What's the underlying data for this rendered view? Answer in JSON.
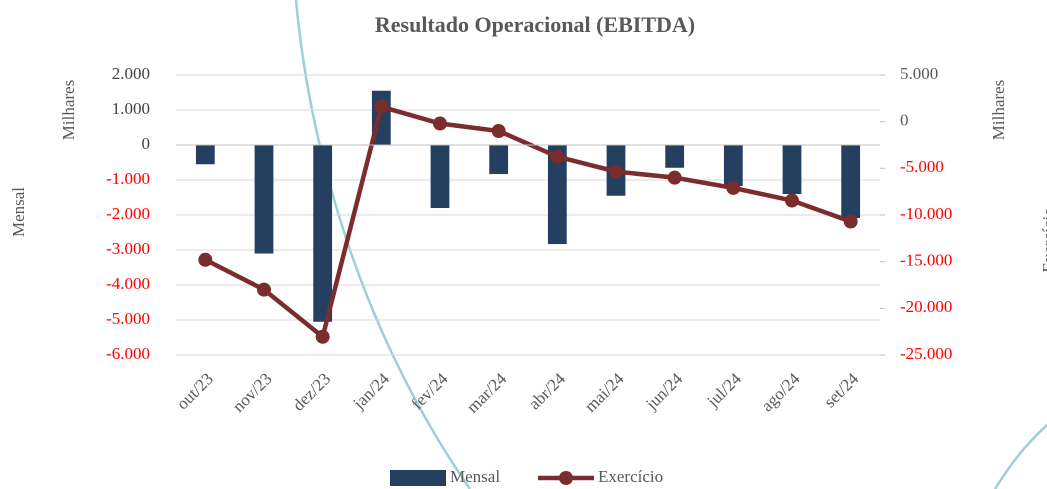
{
  "chart_data": {
    "type": "bar_line",
    "title": "Resultado Operacional (EBITDA)",
    "y_label": "Mensal",
    "y_unit": "Milhares",
    "y2_label": "Exercício",
    "y2_unit": "Milhares",
    "categories": [
      "out/23",
      "nov/23",
      "dez/23",
      "jan/24",
      "fev/24",
      "mar/24",
      "abr/24",
      "mai/24",
      "jun/24",
      "jul/24",
      "ago/24",
      "set/24"
    ],
    "series": [
      {
        "name": "Mensal",
        "type": "bar",
        "color": "#243f60",
        "values": [
          -550,
          -3100,
          -5050,
          1550,
          -1800,
          -830,
          -2830,
          -1450,
          -650,
          -1170,
          -1400,
          -2090
        ]
      },
      {
        "name": "Exercício",
        "type": "line",
        "axis": "y2",
        "color": "#7b2c2c",
        "values": [
          -14800,
          -18000,
          -23050,
          1600,
          -200,
          -1000,
          -3750,
          -5350,
          -6000,
          -7100,
          -8450,
          -10700
        ]
      }
    ],
    "ylim": [
      -6000,
      2000
    ],
    "yticks": [
      {
        "value": 2000,
        "label": "2.000"
      },
      {
        "value": 1000,
        "label": "1.000"
      },
      0,
      {
        "value": -1000,
        "label": "-1.000"
      },
      {
        "value": -2000,
        "label": "-2.000"
      },
      {
        "value": -3000,
        "label": "-3.000"
      },
      {
        "value": -4000,
        "label": "-4.000"
      },
      {
        "value": -5000,
        "label": "-5.000"
      },
      {
        "value": -6000,
        "label": "-6.000"
      }
    ],
    "y2lim": [
      -25000,
      5000
    ],
    "y2ticks": [
      {
        "value": 5000,
        "label": "5.000"
      },
      0,
      {
        "value": -5000,
        "label": "-5.000"
      },
      {
        "value": -10000,
        "label": "-10.000"
      },
      {
        "value": -15000,
        "label": "-15.000"
      },
      {
        "value": -20000,
        "label": "-20.000"
      },
      {
        "value": -25000,
        "label": "-25.000"
      }
    ],
    "negative_tick_color": "#ff0000",
    "grid": true,
    "legend": "bottom"
  }
}
